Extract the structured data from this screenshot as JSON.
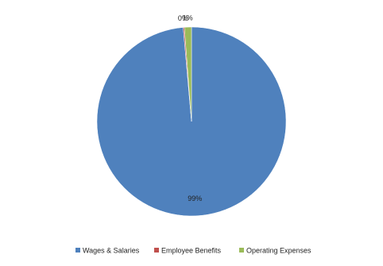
{
  "chart_data": {
    "type": "pie",
    "categories": [
      "Wages & Salaries",
      "Employee Benefits",
      "Operating Expenses"
    ],
    "values": [
      98.6,
      0.2,
      1.2
    ],
    "value_labels": [
      "99%",
      "0%",
      "1%"
    ],
    "colors": [
      "#4f81bd",
      "#c0504d",
      "#9bbb59"
    ],
    "legend": "bottom"
  }
}
